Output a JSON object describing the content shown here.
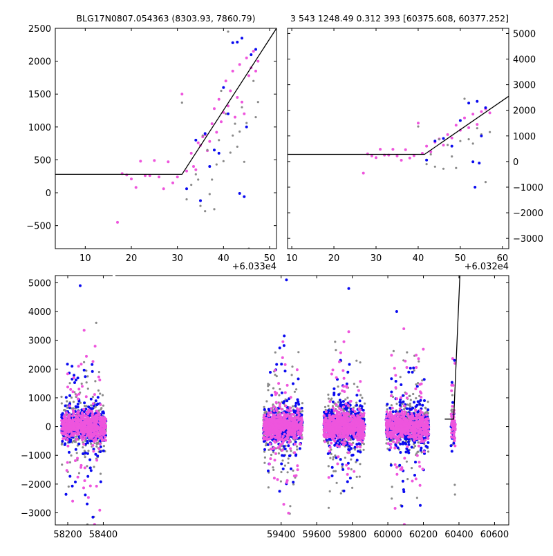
{
  "figure": {
    "title_left": "BLG17N0807.054363 (8303.93, 7860.79)",
    "title_right": "3 543 1248.49 0.312 393 [60375.608, 60377.252]"
  },
  "colors": {
    "blue": "#0a0af0",
    "pink": "#ee55dd",
    "gray": "#8a8a8a",
    "model": "#000000"
  },
  "chart_data": [
    {
      "type": "scatter",
      "panel": "top-left",
      "offset_label": "+6.033e4",
      "xlim": [
        3.5,
        51.5
      ],
      "ylim": [
        -850,
        2500
      ],
      "xticks": [
        10,
        20,
        30,
        40,
        50
      ],
      "xtick_labels": [
        "10",
        "20",
        "30",
        "40",
        "50"
      ],
      "yticks": [
        -500,
        0,
        500,
        1000,
        1500,
        2000,
        2500
      ],
      "ytick_labels": [
        "−500",
        "0",
        "500",
        "1000",
        "1500",
        "2000",
        "2500"
      ],
      "yaxis_side": "left",
      "model_line": [
        [
          3.5,
          280
        ],
        [
          31,
          280
        ],
        [
          51.5,
          2500
        ]
      ],
      "series": [
        {
          "color": "pink",
          "points": [
            [
              17,
              -450
            ],
            [
              18,
              290
            ],
            [
              19,
              270
            ],
            [
              20,
              210
            ],
            [
              21,
              80
            ],
            [
              22,
              480
            ],
            [
              23,
              260
            ],
            [
              24,
              260
            ],
            [
              25,
              490
            ],
            [
              26,
              240
            ],
            [
              27,
              60
            ],
            [
              28,
              470
            ],
            [
              29,
              150
            ],
            [
              30,
              240
            ],
            [
              31,
              1500
            ],
            [
              32,
              330
            ],
            [
              33,
              600
            ],
            [
              33.5,
              400
            ],
            [
              34,
              350
            ],
            [
              34.5,
              760
            ],
            [
              35,
              720
            ],
            [
              35.5,
              850
            ],
            [
              36,
              880
            ],
            [
              36.5,
              640
            ],
            [
              37,
              780
            ],
            [
              37.5,
              1050
            ],
            [
              38,
              1280
            ],
            [
              38.5,
              920
            ],
            [
              39,
              1420
            ],
            [
              39.5,
              1080
            ],
            [
              40,
              1220
            ],
            [
              40.5,
              1700
            ],
            [
              41,
              1320
            ],
            [
              41.5,
              1550
            ],
            [
              42,
              1850
            ],
            [
              42.5,
              1150
            ],
            [
              43,
              1450
            ],
            [
              43.5,
              1950
            ],
            [
              44,
              1380
            ],
            [
              44.5,
              1200
            ],
            [
              45,
              2050
            ],
            [
              45.5,
              1780
            ],
            [
              46,
              1900
            ],
            [
              46.5,
              2150
            ],
            [
              47,
              1850
            ],
            [
              47.5,
              2000
            ]
          ]
        },
        {
          "color": "gray",
          "points": [
            [
              31,
              1370
            ],
            [
              32,
              -100
            ],
            [
              33,
              120
            ],
            [
              34,
              280
            ],
            [
              34.5,
              200
            ],
            [
              35,
              -200
            ],
            [
              35.5,
              870
            ],
            [
              36,
              -280
            ],
            [
              36.5,
              650
            ],
            [
              37,
              -20
            ],
            [
              37.5,
              200
            ],
            [
              38,
              -250
            ],
            [
              38.5,
              430
            ],
            [
              39,
              800
            ],
            [
              39.5,
              1550
            ],
            [
              40,
              480
            ],
            [
              40.5,
              1200
            ],
            [
              41,
              2450
            ],
            [
              41.5,
              610
            ],
            [
              42,
              870
            ],
            [
              42.5,
              1050
            ],
            [
              43,
              700
            ],
            [
              43.5,
              930
            ],
            [
              44,
              1300
            ],
            [
              44.5,
              470
            ],
            [
              45,
              1060
            ],
            [
              45.5,
              -850
            ],
            [
              46,
              2100
            ],
            [
              46.5,
              1700
            ],
            [
              47,
              1150
            ],
            [
              47.5,
              1380
            ]
          ]
        },
        {
          "color": "blue",
          "points": [
            [
              32,
              60
            ],
            [
              34,
              800
            ],
            [
              35,
              -120
            ],
            [
              36,
              900
            ],
            [
              37,
              400
            ],
            [
              38,
              650
            ],
            [
              39,
              600
            ],
            [
              40,
              1600
            ],
            [
              41,
              1200
            ],
            [
              42,
              2280
            ],
            [
              43,
              2290
            ],
            [
              43.5,
              -10
            ],
            [
              44,
              2350
            ],
            [
              44.5,
              -60
            ],
            [
              45,
              1000
            ],
            [
              46,
              2100
            ],
            [
              47,
              2180
            ]
          ]
        }
      ]
    },
    {
      "type": "scatter",
      "panel": "top-right",
      "offset_label": "+6.032e4",
      "xlim": [
        9,
        61.5
      ],
      "ylim": [
        -3400,
        5200
      ],
      "xticks": [
        10,
        20,
        30,
        40,
        50,
        60
      ],
      "xtick_labels": [
        "10",
        "20",
        "30",
        "40",
        "50",
        "60"
      ],
      "yticks": [
        -3000,
        -2000,
        -1000,
        0,
        1000,
        2000,
        3000,
        4000,
        5000
      ],
      "ytick_labels": [
        "−3000",
        "−2000",
        "−1000",
        "0",
        "1000",
        "2000",
        "3000",
        "4000",
        "5000"
      ],
      "yaxis_side": "right",
      "model_line": [
        [
          9,
          280
        ],
        [
          41.5,
          280
        ],
        [
          61.5,
          2550
        ]
      ],
      "series": [
        {
          "color": "pink",
          "points": [
            [
              27,
              -450
            ],
            [
              28,
              300
            ],
            [
              29,
              220
            ],
            [
              30,
              150
            ],
            [
              31,
              480
            ],
            [
              32,
              250
            ],
            [
              33,
              250
            ],
            [
              34,
              480
            ],
            [
              35,
              220
            ],
            [
              36,
              50
            ],
            [
              37,
              460
            ],
            [
              38,
              140
            ],
            [
              39,
              230
            ],
            [
              40,
              1500
            ],
            [
              41,
              320
            ],
            [
              42,
              600
            ],
            [
              43,
              380
            ],
            [
              44,
              760
            ],
            [
              45,
              880
            ],
            [
              46,
              640
            ],
            [
              47,
              1050
            ],
            [
              48,
              920
            ],
            [
              49,
              1420
            ],
            [
              50,
              1220
            ],
            [
              51,
              1700
            ],
            [
              52,
              1320
            ],
            [
              53,
              1850
            ],
            [
              54,
              1450
            ],
            [
              55,
              1950
            ],
            [
              56,
              2050
            ],
            [
              57,
              1900
            ]
          ]
        },
        {
          "color": "gray",
          "points": [
            [
              40,
              1370
            ],
            [
              42,
              -100
            ],
            [
              43,
              280
            ],
            [
              44,
              -200
            ],
            [
              45,
              870
            ],
            [
              46,
              -280
            ],
            [
              47,
              650
            ],
            [
              48,
              200
            ],
            [
              49,
              -250
            ],
            [
              50,
              800
            ],
            [
              51,
              2450
            ],
            [
              52,
              870
            ],
            [
              53,
              700
            ],
            [
              54,
              1300
            ],
            [
              55,
              1060
            ],
            [
              56,
              -800
            ],
            [
              57,
              1150
            ]
          ]
        },
        {
          "color": "blue",
          "points": [
            [
              42,
              60
            ],
            [
              44,
              800
            ],
            [
              46,
              900
            ],
            [
              48,
              600
            ],
            [
              50,
              1600
            ],
            [
              52,
              2280
            ],
            [
              53,
              -10
            ],
            [
              54,
              2350
            ],
            [
              54.5,
              -60
            ],
            [
              55,
              1000
            ],
            [
              56,
              2100
            ],
            [
              53.5,
              -1000
            ]
          ]
        }
      ]
    },
    {
      "type": "scatter",
      "panel": "bottom",
      "xlim": [
        58130,
        60680
      ],
      "ylim": [
        -3420,
        5250
      ],
      "xticks": [
        58200,
        58400,
        59400,
        59600,
        59800,
        60000,
        60200,
        60400,
        60600
      ],
      "xtick_labels": [
        "58200",
        "58400",
        "59400",
        "59600",
        "59800",
        "60000",
        "60200",
        "60400",
        "60600"
      ],
      "yticks": [
        -3000,
        -2000,
        -1000,
        0,
        1000,
        2000,
        3000,
        4000,
        5000
      ],
      "ytick_labels": [
        "−3000",
        "−2000",
        "−1000",
        "0",
        "1000",
        "2000",
        "3000",
        "4000",
        "5000"
      ],
      "yaxis_side": "left",
      "axis_break_x": 58460,
      "model_line": [
        [
          60320,
          260
        ],
        [
          60370,
          260
        ],
        [
          60405,
          5250
        ]
      ],
      "seasons": [
        {
          "x0": 58165,
          "x1": 58415,
          "n_core": 520,
          "n_out": 60,
          "bright_pt": [
            58292,
            3350
          ],
          "peak_blue": [
            58270,
            4900
          ]
        },
        {
          "x0": 59300,
          "x1": 59520,
          "n_core": 520,
          "n_out": 70,
          "bright_pt": [
            59410,
            2950
          ],
          "peak_blue": [
            59430,
            5100
          ]
        },
        {
          "x0": 59640,
          "x1": 59870,
          "n_core": 560,
          "n_out": 70,
          "bright_pt": [
            59780,
            3300
          ],
          "peak_blue": [
            59780,
            4800
          ]
        },
        {
          "x0": 59990,
          "x1": 60230,
          "n_core": 520,
          "n_out": 60,
          "bright_pt": [
            60090,
            3400
          ],
          "peak_blue": [
            60050,
            4000
          ]
        },
        {
          "x0": 60355,
          "x1": 60380,
          "n_core": 40,
          "n_out": 6,
          "bright_pt": [
            60377,
            2200
          ],
          "peak_blue": [
            60375,
            2300
          ]
        }
      ]
    }
  ]
}
